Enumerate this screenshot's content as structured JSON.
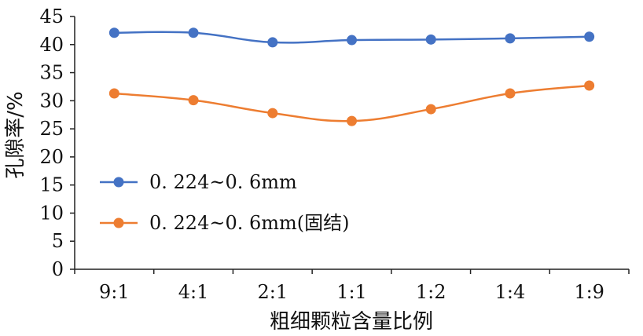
{
  "chart_data": {
    "type": "line",
    "categories": [
      "9:1",
      "4:1",
      "2:1",
      "1:1",
      "1:2",
      "1:4",
      "1:9"
    ],
    "series": [
      {
        "name": "0. 224~0. 6mm",
        "color": "#4472C4",
        "values": [
          42.1,
          42.1,
          40.4,
          40.8,
          40.9,
          41.1,
          41.4
        ]
      },
      {
        "name": "0. 224~0. 6mm(固结)",
        "color": "#ED7D31",
        "values": [
          31.3,
          30.1,
          27.8,
          26.4,
          28.5,
          31.3,
          32.7
        ]
      }
    ],
    "xlabel": "粗细颗粒含量比例",
    "ylabel": "孔隙率/%",
    "ylim": [
      0,
      45
    ],
    "yticks": [
      "0",
      "5",
      "10",
      "15",
      "20",
      "25",
      "30",
      "35",
      "40",
      "45"
    ],
    "grid": false,
    "smooth": true,
    "legend_position": "left-middle"
  }
}
